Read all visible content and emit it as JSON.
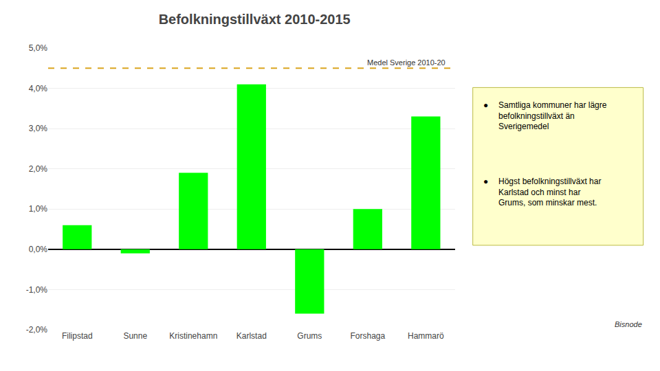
{
  "chart_data": {
    "type": "bar",
    "title": "Befolkningstillväxt 2010-2015",
    "categories": [
      "Filipstad",
      "Sunne",
      "Kristinehamn",
      "Karlstad",
      "Grums",
      "Forshaga",
      "Hammarö"
    ],
    "values": [
      0.006,
      -0.001,
      0.019,
      0.041,
      -0.016,
      0.01,
      0.033
    ],
    "color": "#00FF00",
    "ylim": [
      -0.02,
      0.05
    ],
    "yticks": [
      {
        "value": -0.02,
        "label": "-2,0%"
      },
      {
        "value": -0.01,
        "label": "-1,0%"
      },
      {
        "value": 0.0,
        "label": "0,0%"
      },
      {
        "value": 0.01,
        "label": "1,0%"
      },
      {
        "value": 0.02,
        "label": "2,0%"
      },
      {
        "value": 0.03,
        "label": "3,0%"
      },
      {
        "value": 0.04,
        "label": "4,0%"
      },
      {
        "value": 0.05,
        "label": "5,0%"
      }
    ],
    "grid": true,
    "reference_line": {
      "value": 0.045,
      "label": "Medel Sverige 2010-20",
      "color": "#DAA520",
      "line_style": "dashed"
    },
    "annotation_bullet": "●",
    "annotations": [
      [
        "Samtliga kommuner har lägre",
        "befolkningstillväxt än",
        "Sverigemedel"
      ],
      [
        "Högst befolkningstillväxt har",
        "Karlstad och minst har",
        "Grums, som minskar mest."
      ]
    ],
    "footer": "Bisnode"
  }
}
